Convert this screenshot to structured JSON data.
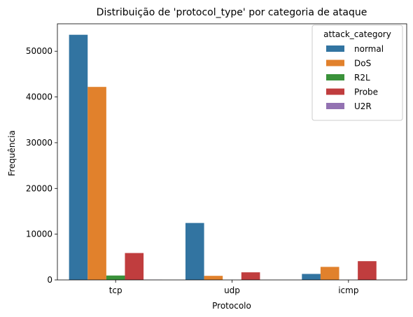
{
  "chart_data": {
    "type": "bar",
    "title": "Distribuição de 'protocol_type' por categoria de ataque",
    "xlabel": "Protocolo",
    "ylabel": "Frequência",
    "categories": [
      "tcp",
      "udp",
      "icmp"
    ],
    "ylim": [
      0,
      56000
    ],
    "yticks": [
      0,
      10000,
      20000,
      30000,
      40000,
      50000
    ],
    "grid": false,
    "legend": {
      "title": "attack_category",
      "position": "top-right"
    },
    "series": [
      {
        "name": "normal",
        "color": "#3274a1",
        "values": [
          53600,
          12450,
          1310
        ]
      },
      {
        "name": "DoS",
        "color": "#e1812c",
        "values": [
          42200,
          890,
          2850
        ]
      },
      {
        "name": "R2L",
        "color": "#3a923a",
        "values": [
          960,
          0,
          0
        ]
      },
      {
        "name": "Probe",
        "color": "#c03d3e",
        "values": [
          5880,
          1660,
          4100
        ]
      },
      {
        "name": "U2R",
        "color": "#9372b2",
        "values": [
          40,
          0,
          0
        ]
      }
    ]
  }
}
